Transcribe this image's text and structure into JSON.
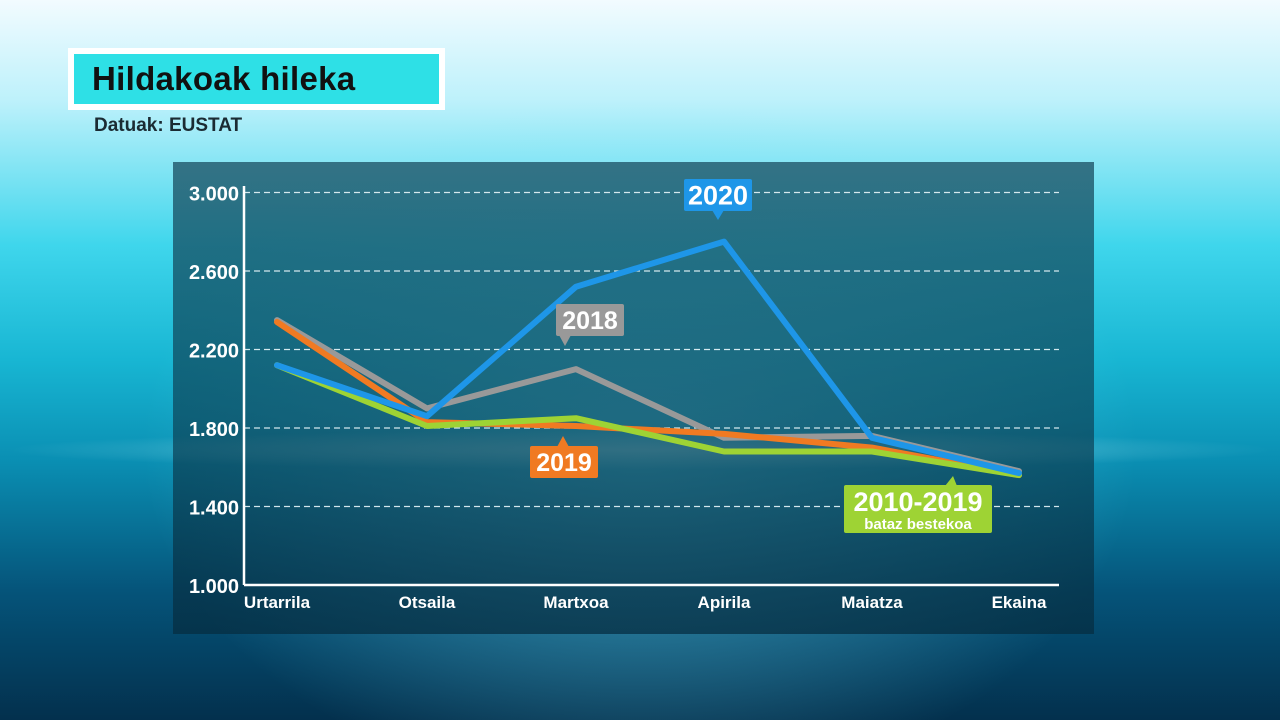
{
  "title": "Hildakoak hileka",
  "source": "Datuak: EUSTAT",
  "chart_data": {
    "type": "line",
    "categories": [
      "Urtarrila",
      "Otsaila",
      "Martxoa",
      "Apirila",
      "Maiatza",
      "Ekaina"
    ],
    "y_ticks": [
      "3.000",
      "2.600",
      "2.200",
      "1.800",
      "1.400",
      "1.000"
    ],
    "ylim": [
      1000,
      3100
    ],
    "grid": true,
    "series": [
      {
        "name": "2020",
        "label": "2020",
        "color": "#1e96e8",
        "values": [
          2120,
          1860,
          2520,
          2750,
          1750,
          1570
        ]
      },
      {
        "name": "2018",
        "label": "2018",
        "color": "#999999",
        "values": [
          2350,
          1900,
          2100,
          1750,
          1760,
          1580
        ]
      },
      {
        "name": "2019",
        "label": "2019",
        "color": "#f07a22",
        "values": [
          2340,
          1830,
          1810,
          1770,
          1700,
          1560
        ]
      },
      {
        "name": "2010-2019 bataz bestekoa",
        "label": "2010-2019",
        "sublabel": "bataz bestekoa",
        "color": "#9ed334",
        "values": [
          2120,
          1810,
          1850,
          1680,
          1680,
          1560
        ]
      }
    ]
  }
}
